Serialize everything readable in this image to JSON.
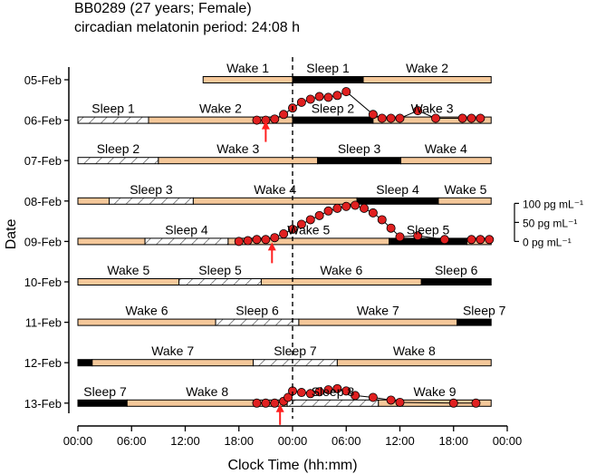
{
  "header": {
    "line1": "BB0289 (27 years; Female)",
    "line2": "circadian melatonin period: 24:08 h"
  },
  "chart_data": {
    "type": "scatter",
    "xlabel": "Clock Time (hh:mm)",
    "ylabel": "Date",
    "x_ticks": [
      "00:00",
      "06:00",
      "12:00",
      "18:00",
      "00:00",
      "06:00",
      "12:00",
      "18:00",
      "00:00"
    ],
    "xlim_hours": [
      0,
      48
    ],
    "reference_line_hour": 24,
    "dates": [
      "05-Feb",
      "06-Feb",
      "07-Feb",
      "08-Feb",
      "09-Feb",
      "10-Feb",
      "11-Feb",
      "12-Feb",
      "13-Feb"
    ],
    "melatonin_scale": [
      "100 pg mL⁻¹",
      "50 pg mL⁻¹",
      "0 pg mL⁻¹"
    ],
    "colors": {
      "wake": "#f5c89a",
      "sleep_night": "#000000",
      "sleep_shifted": "#ffffff",
      "points": "#e02020",
      "arrow": "#ff2020"
    },
    "rows": [
      {
        "date": "05-Feb",
        "segments": [
          {
            "type": "wake",
            "start": 14.0,
            "end": 24.0,
            "label": "Wake 1"
          },
          {
            "type": "sleep",
            "style": "solid",
            "start": 24.0,
            "end": 31.9,
            "label": "Sleep 1"
          },
          {
            "type": "wake",
            "start": 31.9,
            "end": 46.2,
            "label": "Wake 2"
          }
        ]
      },
      {
        "date": "06-Feb",
        "segments": [
          {
            "type": "sleep",
            "style": "hatched",
            "start": 0.0,
            "end": 7.9,
            "label": "Sleep 1"
          },
          {
            "type": "wake",
            "start": 7.9,
            "end": 24.0,
            "label": "Wake 2"
          },
          {
            "type": "sleep",
            "style": "solid",
            "start": 24.0,
            "end": 33.0,
            "label": "Sleep 2"
          },
          {
            "type": "wake",
            "start": 33.0,
            "end": 46.2,
            "label": "Wake 3"
          }
        ],
        "melatonin": [
          [
            20.0,
            0
          ],
          [
            21.0,
            0
          ],
          [
            22.0,
            3
          ],
          [
            23.0,
            15
          ],
          [
            24.0,
            32
          ],
          [
            25.0,
            47
          ],
          [
            26.0,
            55
          ],
          [
            27.0,
            62
          ],
          [
            28.0,
            60
          ],
          [
            29.0,
            65
          ],
          [
            30.0,
            75
          ],
          [
            33.0,
            15
          ],
          [
            34.0,
            5
          ],
          [
            35.0,
            5
          ],
          [
            36.0,
            5
          ],
          [
            38.0,
            25
          ],
          [
            40.0,
            5
          ],
          [
            43.0,
            5
          ],
          [
            44.0,
            5
          ],
          [
            45.0,
            5
          ]
        ],
        "arrow_hour": 21.0
      },
      {
        "date": "07-Feb",
        "segments": [
          {
            "type": "sleep",
            "style": "hatched",
            "start": 0.0,
            "end": 9.0,
            "label": "Sleep 2"
          },
          {
            "type": "wake",
            "start": 9.0,
            "end": 26.8,
            "label": "Wake 3"
          },
          {
            "type": "sleep",
            "style": "solid",
            "start": 26.8,
            "end": 36.1,
            "label": "Sleep 3"
          },
          {
            "type": "wake",
            "start": 36.1,
            "end": 46.2,
            "label": "Wake 4"
          }
        ]
      },
      {
        "date": "08-Feb",
        "segments": [
          {
            "type": "wake",
            "start": 0.0,
            "end": 3.5,
            "label": ""
          },
          {
            "type": "sleep",
            "style": "hatched",
            "start": 3.5,
            "end": 12.9,
            "label": "Sleep 3"
          },
          {
            "type": "wake",
            "start": 12.9,
            "end": 31.2,
            "label": "Wake 4"
          },
          {
            "type": "sleep",
            "style": "solid",
            "start": 31.2,
            "end": 40.3,
            "label": "Sleep 4"
          },
          {
            "type": "wake",
            "start": 40.3,
            "end": 46.2,
            "label": "Wake 5"
          }
        ]
      },
      {
        "date": "09-Feb",
        "segments": [
          {
            "type": "wake",
            "start": 0.0,
            "end": 7.5,
            "label": ""
          },
          {
            "type": "sleep",
            "style": "hatched",
            "start": 7.5,
            "end": 16.8,
            "label": "Sleep 4"
          },
          {
            "type": "wake",
            "start": 16.8,
            "end": 34.8,
            "label": "Wake 5"
          },
          {
            "type": "sleep",
            "style": "solid",
            "start": 34.8,
            "end": 43.5,
            "label": "Sleep 5"
          },
          {
            "type": "wake",
            "start": 43.5,
            "end": 46.2,
            "label": ""
          }
        ],
        "melatonin": [
          [
            18.0,
            0
          ],
          [
            19.0,
            2
          ],
          [
            20.0,
            5
          ],
          [
            21.0,
            5
          ],
          [
            22.0,
            10
          ],
          [
            23.0,
            20
          ],
          [
            24.0,
            32
          ],
          [
            25.0,
            45
          ],
          [
            26.0,
            57
          ],
          [
            27.0,
            68
          ],
          [
            28.0,
            80
          ],
          [
            29.0,
            87
          ],
          [
            30.0,
            92
          ],
          [
            31.0,
            95
          ],
          [
            32.0,
            87
          ],
          [
            33.0,
            75
          ],
          [
            34.0,
            57
          ],
          [
            35.0,
            35
          ],
          [
            36.0,
            12
          ],
          [
            38.0,
            15
          ],
          [
            41.0,
            5
          ],
          [
            44.0,
            5
          ],
          [
            45.0,
            5
          ],
          [
            46.0,
            5
          ]
        ],
        "arrow_hour": 21.7
      },
      {
        "date": "10-Feb",
        "segments": [
          {
            "type": "wake",
            "start": 0.0,
            "end": 11.3,
            "label": "Wake 5"
          },
          {
            "type": "sleep",
            "style": "hatched",
            "start": 11.3,
            "end": 20.5,
            "label": "Sleep 5"
          },
          {
            "type": "wake",
            "start": 20.5,
            "end": 38.4,
            "label": "Wake 6"
          },
          {
            "type": "sleep",
            "style": "solid",
            "start": 38.4,
            "end": 46.2,
            "label": "Sleep 6"
          }
        ]
      },
      {
        "date": "11-Feb",
        "segments": [
          {
            "type": "wake",
            "start": 0.0,
            "end": 15.4,
            "label": "Wake 6"
          },
          {
            "type": "sleep",
            "style": "hatched",
            "start": 15.4,
            "end": 24.7,
            "label": "Sleep 6"
          },
          {
            "type": "wake",
            "start": 24.7,
            "end": 42.4,
            "label": "Wake 7"
          },
          {
            "type": "sleep",
            "style": "solid",
            "start": 42.4,
            "end": 46.2,
            "label": "Sleep 7"
          }
        ]
      },
      {
        "date": "12-Feb",
        "segments": [
          {
            "type": "sleep",
            "style": "solid",
            "start": 0.0,
            "end": 1.6,
            "label": ""
          },
          {
            "type": "wake",
            "start": 1.6,
            "end": 19.6,
            "label": "Wake 7"
          },
          {
            "type": "sleep",
            "style": "hatched",
            "start": 19.6,
            "end": 29.0,
            "label": "Sleep 7"
          },
          {
            "type": "wake",
            "start": 29.0,
            "end": 46.2,
            "label": "Wake 8"
          }
        ]
      },
      {
        "date": "13-Feb",
        "segments": [
          {
            "type": "sleep",
            "style": "solid",
            "start": 0.0,
            "end": 5.5,
            "label": "Sleep 7"
          },
          {
            "type": "wake",
            "start": 5.5,
            "end": 23.4,
            "label": "Wake 8"
          },
          {
            "type": "sleep",
            "style": "hatched",
            "start": 23.4,
            "end": 33.6,
            "label": "Sleep 8"
          },
          {
            "type": "wake",
            "start": 33.6,
            "end": 46.2,
            "label": "Wake 9"
          }
        ],
        "melatonin": [
          [
            20.0,
            0
          ],
          [
            21.0,
            0
          ],
          [
            22.0,
            0
          ],
          [
            23.0,
            5
          ],
          [
            23.5,
            15
          ],
          [
            24.0,
            32
          ],
          [
            25.0,
            28
          ],
          [
            26.0,
            25
          ],
          [
            27.0,
            30
          ],
          [
            28.0,
            35
          ],
          [
            29.0,
            38
          ],
          [
            30.0,
            32
          ],
          [
            31.0,
            20
          ],
          [
            33.0,
            15
          ],
          [
            35.0,
            8
          ],
          [
            36.0,
            2
          ],
          [
            42.0,
            0
          ],
          [
            44.5,
            0
          ]
        ],
        "arrow_hour": 22.6
      }
    ]
  }
}
